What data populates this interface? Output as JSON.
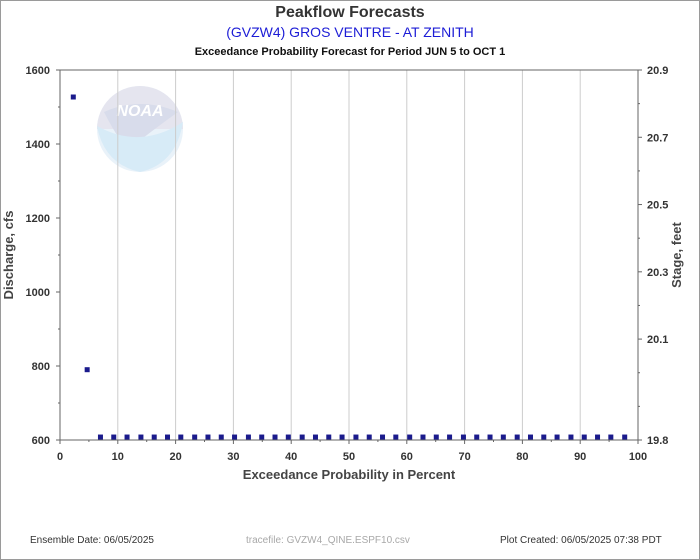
{
  "header": {
    "title": "Peakflow Forecasts",
    "subtitle": "(GVZW4) GROS VENTRE - AT ZENITH",
    "period": "Exceedance Probability Forecast for Period JUN 5 to OCT 1"
  },
  "footer": {
    "ensemble_date": "Ensemble Date: 06/05/2025",
    "tracefile": "tracefile: GVZW4_QINE.ESPF10.csv",
    "plot_created": "Plot Created: 06/05/2025 07:38 PDT"
  },
  "watermark": {
    "icon": "noaa-logo",
    "text": "NOAA"
  },
  "chart_data": {
    "type": "scatter",
    "xlabel": "Exceedance Probability in Percent",
    "ylabel": "Discharge, cfs",
    "y2label": "Stage, feet",
    "xlim": [
      0,
      100
    ],
    "ylim": [
      600,
      1600
    ],
    "y2lim": [
      19.8,
      20.9
    ],
    "xticks": [
      0,
      10,
      20,
      30,
      40,
      50,
      60,
      70,
      80,
      90,
      100
    ],
    "yticks": [
      600,
      800,
      1000,
      1200,
      1400,
      1600
    ],
    "y2ticks": [
      19.8,
      20.1,
      20.3,
      20.5,
      20.7,
      20.9
    ],
    "grid": true,
    "marker_color": "#1a1a8c",
    "series": [
      {
        "x": [
          2.3,
          4.7,
          7.0,
          9.3,
          11.6,
          14.0,
          16.3,
          18.6,
          20.9,
          23.3,
          25.6,
          27.9,
          30.2,
          32.6,
          34.9,
          37.2,
          39.5,
          41.9,
          44.2,
          46.5,
          48.8,
          51.2,
          53.5,
          55.8,
          58.1,
          60.5,
          62.8,
          65.1,
          67.4,
          69.8,
          72.1,
          74.4,
          76.7,
          79.1,
          81.4,
          83.7,
          86.0,
          88.4,
          90.7,
          93.0,
          95.3,
          97.7
        ],
        "y": [
          1527,
          790,
          608,
          608,
          608,
          608,
          608,
          608,
          608,
          608,
          608,
          608,
          608,
          608,
          608,
          608,
          608,
          608,
          608,
          608,
          608,
          608,
          608,
          608,
          608,
          608,
          608,
          608,
          608,
          608,
          608,
          608,
          608,
          608,
          608,
          608,
          608,
          608,
          608,
          608,
          608,
          608
        ]
      }
    ]
  }
}
